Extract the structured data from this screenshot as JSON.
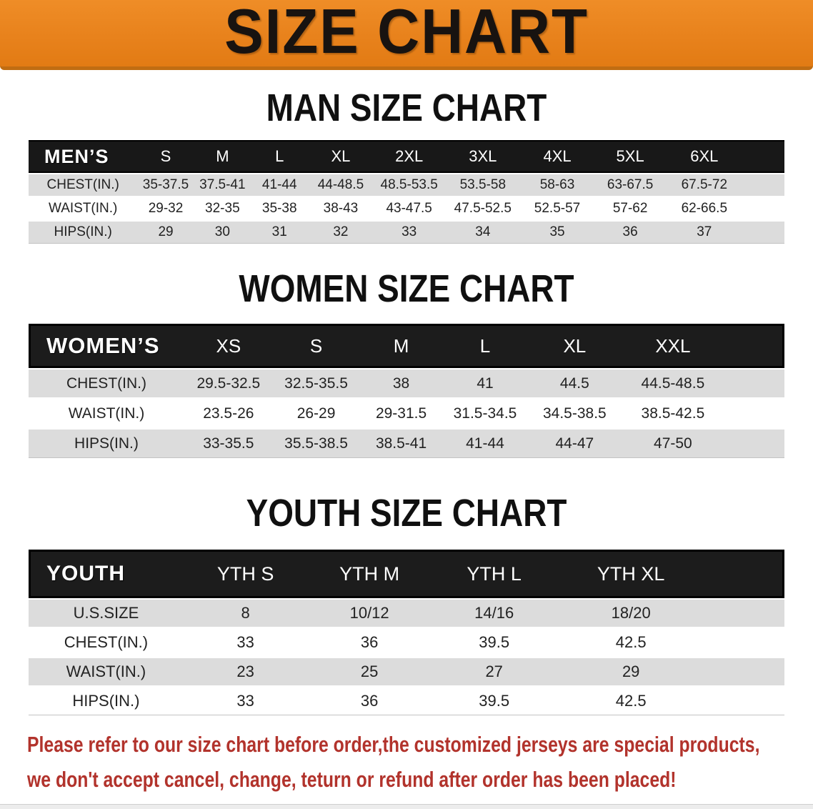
{
  "banner": {
    "title": "SIZE CHART",
    "bg_color": "#E8821C",
    "title_color": "#181310"
  },
  "sections": [
    {
      "heading": "MAN SIZE CHART",
      "group_label": "MEN’S",
      "columns": [
        "S",
        "M",
        "L",
        "XL",
        "2XL",
        "3XL",
        "4XL",
        "5XL",
        "6XL"
      ],
      "rows": [
        {
          "label": "CHEST(IN.)",
          "values": [
            "35-37.5",
            "37.5-41",
            "41-44",
            "44-48.5",
            "48.5-53.5",
            "53.5-58",
            "58-63",
            "63-67.5",
            "67.5-72"
          ]
        },
        {
          "label": "WAIST(IN.)",
          "values": [
            "29-32",
            "32-35",
            "35-38",
            "38-43",
            "43-47.5",
            "47.5-52.5",
            "52.5-57",
            "57-62",
            "62-66.5"
          ]
        },
        {
          "label": "HIPS(IN.)",
          "values": [
            "29",
            "30",
            "31",
            "32",
            "33",
            "34",
            "35",
            "36",
            "37"
          ]
        }
      ]
    },
    {
      "heading": "WOMEN SIZE CHART",
      "group_label": "WOMEN’S",
      "columns": [
        "XS",
        "S",
        "M",
        "L",
        "XL",
        "XXL"
      ],
      "rows": [
        {
          "label": "CHEST(IN.)",
          "values": [
            "29.5-32.5",
            "32.5-35.5",
            "38",
            "41",
            "44.5",
            "44.5-48.5"
          ]
        },
        {
          "label": "WAIST(IN.)",
          "values": [
            "23.5-26",
            "26-29",
            "29-31.5",
            "31.5-34.5",
            "34.5-38.5",
            "38.5-42.5"
          ]
        },
        {
          "label": "HIPS(IN.)",
          "values": [
            "33-35.5",
            "35.5-38.5",
            "38.5-41",
            "41-44",
            "44-47",
            "47-50"
          ]
        }
      ]
    },
    {
      "heading": "YOUTH SIZE CHART",
      "group_label": "YOUTH",
      "columns": [
        "YTH S",
        "YTH M",
        "YTH L",
        "YTH XL"
      ],
      "rows": [
        {
          "label": "U.S.SIZE",
          "values": [
            "8",
            "10/12",
            "14/16",
            "18/20"
          ]
        },
        {
          "label": "CHEST(IN.)",
          "values": [
            "33",
            "36",
            "39.5",
            "42.5"
          ]
        },
        {
          "label": "WAIST(IN.)",
          "values": [
            "23",
            "25",
            "27",
            "29"
          ]
        },
        {
          "label": "HIPS(IN.)",
          "values": [
            "33",
            "36",
            "39.5",
            "42.5"
          ]
        }
      ]
    }
  ],
  "footer": {
    "lines": [
      "Please refer to our size chart before order,the customized jerseys are special products,",
      "we don't accept cancel, change, teturn or refund after order has been placed!"
    ],
    "text_color": "#B2332C"
  }
}
